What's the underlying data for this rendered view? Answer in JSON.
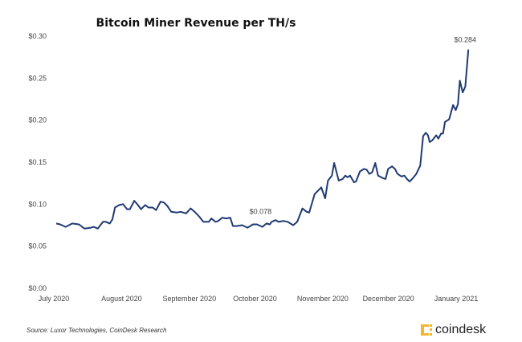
{
  "chart_data": {
    "type": "line",
    "title": "Bitcoin Miner Revenue per TH/s",
    "xlabel": "",
    "ylabel": "",
    "x_unit": "days since July 1, 2020",
    "ylim": [
      0,
      0.3
    ],
    "xlim": [
      0,
      190
    ],
    "grid": false,
    "y_ticks": [
      {
        "value": 0.3,
        "label": "$0.30"
      },
      {
        "value": 0.25,
        "label": "$0.25"
      },
      {
        "value": 0.2,
        "label": "$0.20"
      },
      {
        "value": 0.15,
        "label": "$0.15"
      },
      {
        "value": 0.1,
        "label": "$0.10"
      },
      {
        "value": 0.05,
        "label": "$0.05"
      },
      {
        "value": 0.0,
        "label": "$0.00"
      }
    ],
    "x_ticks": [
      {
        "value": 0,
        "label": "July 2020"
      },
      {
        "value": 31,
        "label": "August 2020"
      },
      {
        "value": 62,
        "label": "September 2020"
      },
      {
        "value": 92,
        "label": "October 2020"
      },
      {
        "value": 123,
        "label": "November 2020"
      },
      {
        "value": 153,
        "label": "December 2020"
      },
      {
        "value": 184,
        "label": "January 2021"
      }
    ],
    "series": [
      {
        "name": "Miner revenue per TH/s (USD)",
        "color": "#1f3a73",
        "x": [
          1.1,
          2.9,
          5.4,
          8.4,
          11.5,
          14,
          17,
          18.2,
          20.1,
          22.5,
          23.8,
          25.6,
          26.8,
          28,
          29.9,
          31.7,
          33.5,
          34.8,
          36.8,
          38.5,
          39.9,
          41.8,
          43.3,
          45.2,
          46.8,
          48.8,
          50.3,
          51.9,
          53.7,
          56.2,
          58,
          60.5,
          62.6,
          64.8,
          66.6,
          68.4,
          70.9,
          72.1,
          73.9,
          75.2,
          77,
          78.9,
          80.7,
          81.9,
          83.7,
          86.2,
          88.6,
          91.1,
          92.9,
          95.4,
          97.2,
          98.8,
          99.6,
          101.5,
          102.7,
          105.2,
          107,
          107.6,
          109.5,
          111.3,
          113.7,
          115.6,
          116.8,
          119.3,
          122.3,
          124.1,
          125.4,
          127.2,
          128.2,
          130.3,
          132.1,
          133.3,
          134.3,
          135.5,
          137.3,
          138.2,
          140,
          141.9,
          143.1,
          144.3,
          145.6,
          147,
          148.3,
          150.5,
          151.7,
          152.9,
          154.7,
          156,
          157.2,
          159,
          160.3,
          161.5,
          162.7,
          163.9,
          165.8,
          167.6,
          168.9,
          170.1,
          171.1,
          171.9,
          173.1,
          174.9,
          175.9,
          177.1,
          178,
          178.9,
          180.8,
          182.6,
          183.8,
          184.8,
          185.7,
          187,
          188.2,
          189.6
        ],
        "y": [
          0.077,
          0.076,
          0.073,
          0.077,
          0.076,
          0.071,
          0.072,
          0.073,
          0.071,
          0.079,
          0.079,
          0.077,
          0.082,
          0.096,
          0.099,
          0.1,
          0.094,
          0.094,
          0.104,
          0.099,
          0.094,
          0.099,
          0.096,
          0.096,
          0.093,
          0.103,
          0.102,
          0.098,
          0.091,
          0.09,
          0.091,
          0.089,
          0.095,
          0.09,
          0.085,
          0.079,
          0.079,
          0.083,
          0.079,
          0.08,
          0.084,
          0.083,
          0.084,
          0.074,
          0.074,
          0.075,
          0.072,
          0.076,
          0.076,
          0.073,
          0.077,
          0.076,
          0.079,
          0.081,
          0.079,
          0.08,
          0.079,
          0.078,
          0.075,
          0.079,
          0.095,
          0.091,
          0.09,
          0.112,
          0.12,
          0.107,
          0.128,
          0.134,
          0.149,
          0.128,
          0.13,
          0.134,
          0.132,
          0.134,
          0.126,
          0.127,
          0.139,
          0.142,
          0.141,
          0.136,
          0.138,
          0.149,
          0.134,
          0.131,
          0.13,
          0.142,
          0.145,
          0.142,
          0.136,
          0.133,
          0.134,
          0.13,
          0.127,
          0.13,
          0.136,
          0.146,
          0.181,
          0.185,
          0.182,
          0.174,
          0.176,
          0.182,
          0.178,
          0.184,
          0.184,
          0.198,
          0.201,
          0.218,
          0.212,
          0.219,
          0.247,
          0.233,
          0.24,
          0.284
        ]
      }
    ],
    "annotations": [
      {
        "label": "$0.078",
        "x": 96,
        "y": 0.078
      },
      {
        "label": "$0.284",
        "x": 189.6,
        "y": 0.284
      }
    ],
    "legend": "none"
  },
  "footer": {
    "source": "Source: Luxor Technologies, CoinDesk Research",
    "brand": "coindesk"
  }
}
